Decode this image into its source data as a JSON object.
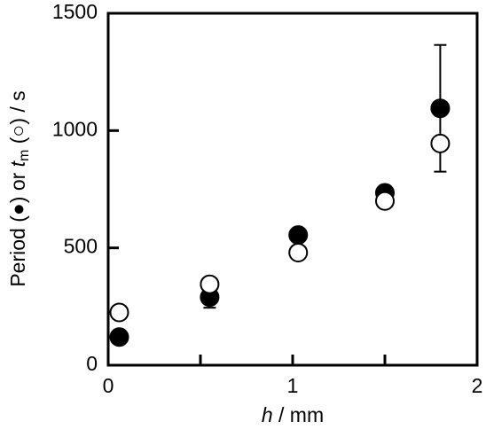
{
  "chart_data": {
    "type": "scatter",
    "x_label": [
      "h",
      " / mm"
    ],
    "y_label": [
      "Period (●) or ",
      "t",
      "m",
      " (○) / s"
    ],
    "xlim": [
      0,
      2
    ],
    "xticks": [
      0,
      1,
      2
    ],
    "xminor_ticks": [
      0.5,
      1.5
    ],
    "ylim": [
      0,
      1500
    ],
    "yticks": [
      0,
      500,
      1000,
      1500
    ],
    "series": [
      {
        "marker": "filled",
        "color": "#000000",
        "x": [
          0.06,
          0.55,
          1.03,
          1.5,
          1.8
        ],
        "values": [
          120,
          290,
          555,
          735,
          1095
        ],
        "errors": [
          null,
          45,
          null,
          null,
          270
        ]
      },
      {
        "marker": "open",
        "color": "#000000",
        "x": [
          0.06,
          0.55,
          1.03,
          1.5,
          1.8
        ],
        "values": [
          225,
          345,
          480,
          700,
          945
        ]
      }
    ]
  }
}
